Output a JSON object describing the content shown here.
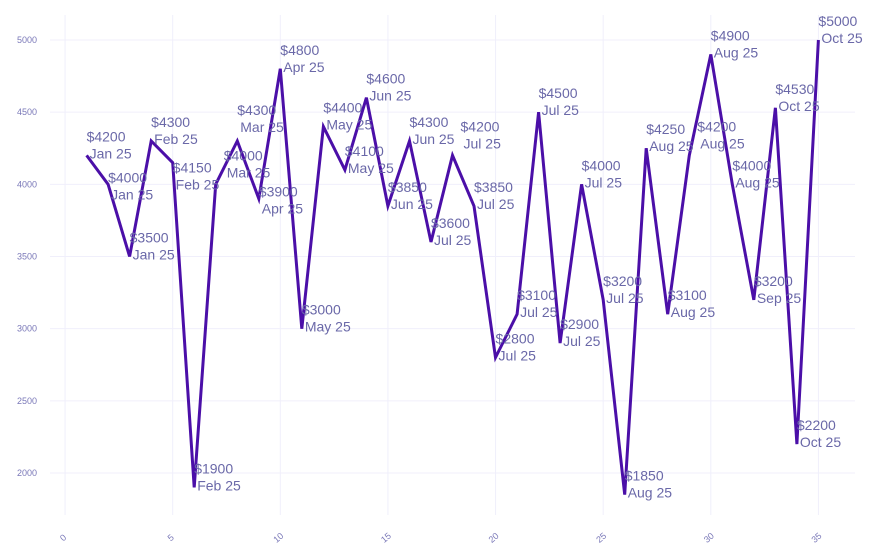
{
  "chart_data": {
    "type": "line",
    "title": "",
    "xlabel": "",
    "ylabel": "",
    "xlim": [
      -0.7,
      36.7
    ],
    "ylim": [
      1709,
      5173
    ],
    "grid": true,
    "line_color": "#4b0fa8",
    "text_color": "#6a68a8",
    "x_ticks": [
      0,
      5,
      10,
      15,
      20,
      25,
      30,
      35
    ],
    "y_ticks": [
      2000,
      2500,
      3000,
      3500,
      4000,
      4500,
      5000
    ],
    "x": [
      1,
      2,
      3,
      4,
      5,
      6,
      7,
      8,
      9,
      10,
      11,
      12,
      13,
      14,
      15,
      16,
      17,
      18,
      19,
      20,
      21,
      22,
      23,
      24,
      25,
      26,
      27,
      28,
      29,
      30,
      31,
      32,
      33,
      34,
      35
    ],
    "values": [
      4200,
      4000,
      3500,
      4300,
      4150,
      1900,
      4000,
      4300,
      3900,
      4800,
      3000,
      4400,
      4100,
      4600,
      3850,
      4300,
      3600,
      4200,
      3850,
      2800,
      3100,
      4500,
      2900,
      4000,
      3200,
      1850,
      4250,
      3100,
      4200,
      4900,
      4000,
      3200,
      4530,
      2200,
      5000
    ],
    "value_labels": [
      "$4200",
      "$4000",
      "$3500",
      "$4300",
      "$4150",
      "$1900",
      "$4000",
      "$4300",
      "$3900",
      "$4800",
      "$3000",
      "$4400",
      "$4100",
      "$4600",
      "$3850",
      "$4300",
      "$3600",
      "$4200",
      "$3850",
      "$2800",
      "$3100",
      "$4500",
      "$2900",
      "$4000",
      "$3200",
      "$1850",
      "$4250",
      "$3100",
      "$4200",
      "$4900",
      "$4000",
      "$3200",
      "$4530",
      "$2200",
      "$5000"
    ],
    "month_labels": [
      "Jan 25",
      "Jan 25",
      "Jan 25",
      "Feb 25",
      "Feb 25",
      "Feb 25",
      "Mar 25",
      "Mar 25",
      "Apr 25",
      "Apr 25",
      "May 25",
      "May 25",
      "May 25",
      "Jun 25",
      "Jun 25",
      "Jun 25",
      "Jul 25",
      "Jul 25",
      "Jul 25",
      "Jul 25",
      "Jul 25",
      "Jul 25",
      "Jul 25",
      "Jul 25",
      "Jul 25",
      "Aug 25",
      "Aug 25",
      "Aug 25",
      "Aug 25",
      "Aug 25",
      "Aug 25",
      "Sep 25",
      "Oct 25",
      "Oct 25",
      "Oct 25"
    ]
  }
}
